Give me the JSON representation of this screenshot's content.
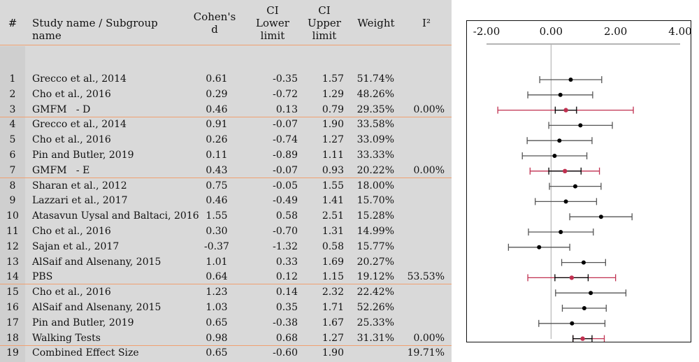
{
  "headers": {
    "num": "#",
    "name": "Study name / Subgroup name",
    "d_line1": "Cohen's",
    "d_line2": "d",
    "lower_line1": "CI",
    "lower_line2": "Lower",
    "lower_line3": "limit",
    "upper_line1": "CI",
    "upper_line2": "Upper",
    "upper_line3": "limit",
    "weight": "Weight",
    "i2": "I²"
  },
  "rows": [
    {
      "num": "1",
      "name": "Grecco et al., 2014",
      "d": "0.61",
      "lower": "-0.35",
      "upper": "1.57",
      "weight": "51.74%",
      "i2": ""
    },
    {
      "num": "2",
      "name": "Cho et al., 2016",
      "d": "0.29",
      "lower": "-0.72",
      "upper": "1.29",
      "weight": "48.26%",
      "i2": ""
    },
    {
      "num": "3",
      "name": "GMFM   - D",
      "d": "0.46",
      "lower": "0.13",
      "upper": "0.79",
      "weight": "29.35%",
      "i2": "0.00%"
    },
    {
      "num": "4",
      "name": "Grecco et al., 2014",
      "d": "0.91",
      "lower": "-0.07",
      "upper": "1.90",
      "weight": "33.58%",
      "i2": ""
    },
    {
      "num": "5",
      "name": "Cho et al., 2016",
      "d": "0.26",
      "lower": "-0.74",
      "upper": "1.27",
      "weight": "33.09%",
      "i2": ""
    },
    {
      "num": "6",
      "name": "Pin and Butler, 2019",
      "d": "0.11",
      "lower": "-0.89",
      "upper": "1.11",
      "weight": "33.33%",
      "i2": ""
    },
    {
      "num": "7",
      "name": "GMFM   - E",
      "d": "0.43",
      "lower": "-0.07",
      "upper": "0.93",
      "weight": "20.22%",
      "i2": "0.00%"
    },
    {
      "num": "8",
      "name": "Sharan et al., 2012",
      "d": "0.75",
      "lower": "-0.05",
      "upper": "1.55",
      "weight": "18.00%",
      "i2": ""
    },
    {
      "num": "9",
      "name": "Lazzari et al., 2017",
      "d": "0.46",
      "lower": "-0.49",
      "upper": "1.41",
      "weight": "15.70%",
      "i2": ""
    },
    {
      "num": "10",
      "name": "Atasavun Uysal and Baltaci, 2016",
      "d": "1.55",
      "lower": "0.58",
      "upper": "2.51",
      "weight": "15.28%",
      "i2": ""
    },
    {
      "num": "11",
      "name": "Cho et al., 2016",
      "d": "0.30",
      "lower": "-0.70",
      "upper": "1.31",
      "weight": "14.99%",
      "i2": ""
    },
    {
      "num": "12",
      "name": "Sajan et al., 2017",
      "d": "-0.37",
      "lower": "-1.32",
      "upper": "0.58",
      "weight": "15.77%",
      "i2": ""
    },
    {
      "num": "13",
      "name": "AlSaif and Alsenany, 2015",
      "d": "1.01",
      "lower": "0.33",
      "upper": "1.69",
      "weight": "20.27%",
      "i2": ""
    },
    {
      "num": "14",
      "name": "PBS",
      "d": "0.64",
      "lower": "0.12",
      "upper": "1.15",
      "weight": "19.12%",
      "i2": "53.53%"
    },
    {
      "num": "15",
      "name": "Cho et al., 2016",
      "d": "1.23",
      "lower": "0.14",
      "upper": "2.32",
      "weight": "22.42%",
      "i2": ""
    },
    {
      "num": "16",
      "name": "AlSaif and Alsenany, 2015",
      "d": "1.03",
      "lower": "0.35",
      "upper": "1.71",
      "weight": "52.26%",
      "i2": ""
    },
    {
      "num": "17",
      "name": "Pin and Butler, 2019",
      "d": "0.65",
      "lower": "-0.38",
      "upper": "1.67",
      "weight": "25.33%",
      "i2": ""
    },
    {
      "num": "18",
      "name": "Walking Tests",
      "d": "0.98",
      "lower": "0.68",
      "upper": "1.27",
      "weight": "31.31%",
      "i2": "0.00%"
    },
    {
      "num": "19",
      "name": "Combined Effect Size",
      "d": "0.65",
      "lower": "-0.60",
      "upper": "1.90",
      "weight": "",
      "i2": "19.71%"
    }
  ],
  "colors": {
    "study": "#555555",
    "subgroup": "#c03050",
    "separator": "#f0a070",
    "panel": "#d9d9d9"
  },
  "chart_data": {
    "type": "forest",
    "xlim": [
      -2.0,
      4.0
    ],
    "xticks": [
      "-2.00",
      "0.00",
      "2.00",
      "4.00"
    ],
    "reference_line": 0,
    "grid": false,
    "points": [
      {
        "row": 1,
        "kind": "study",
        "d": 0.61,
        "lower": -0.35,
        "upper": 1.57
      },
      {
        "row": 2,
        "kind": "study",
        "d": 0.29,
        "lower": -0.72,
        "upper": 1.29
      },
      {
        "row": 3,
        "kind": "subgroup",
        "d": 0.46,
        "lower": -1.65,
        "upper": 2.55,
        "pooled_lower": 0.13,
        "pooled_upper": 0.79
      },
      {
        "row": 4,
        "kind": "study",
        "d": 0.91,
        "lower": -0.07,
        "upper": 1.9
      },
      {
        "row": 5,
        "kind": "study",
        "d": 0.26,
        "lower": -0.74,
        "upper": 1.27
      },
      {
        "row": 6,
        "kind": "study",
        "d": 0.11,
        "lower": -0.89,
        "upper": 1.11
      },
      {
        "row": 7,
        "kind": "subgroup",
        "d": 0.43,
        "lower": -0.65,
        "upper": 1.5,
        "pooled_lower": -0.07,
        "pooled_upper": 0.93
      },
      {
        "row": 8,
        "kind": "study",
        "d": 0.75,
        "lower": -0.05,
        "upper": 1.55
      },
      {
        "row": 9,
        "kind": "study",
        "d": 0.46,
        "lower": -0.49,
        "upper": 1.41
      },
      {
        "row": 10,
        "kind": "study",
        "d": 1.55,
        "lower": 0.58,
        "upper": 2.51
      },
      {
        "row": 11,
        "kind": "study",
        "d": 0.3,
        "lower": -0.7,
        "upper": 1.31
      },
      {
        "row": 12,
        "kind": "study",
        "d": -0.37,
        "lower": -1.32,
        "upper": 0.58
      },
      {
        "row": 13,
        "kind": "study",
        "d": 1.01,
        "lower": 0.33,
        "upper": 1.69
      },
      {
        "row": 14,
        "kind": "subgroup",
        "d": 0.64,
        "lower": -0.72,
        "upper": 2.0,
        "pooled_lower": 0.12,
        "pooled_upper": 1.15
      },
      {
        "row": 15,
        "kind": "study",
        "d": 1.23,
        "lower": 0.14,
        "upper": 2.32
      },
      {
        "row": 16,
        "kind": "study",
        "d": 1.03,
        "lower": 0.35,
        "upper": 1.71
      },
      {
        "row": 17,
        "kind": "study",
        "d": 0.65,
        "lower": -0.38,
        "upper": 1.67
      },
      {
        "row": 18,
        "kind": "subgroup",
        "d": 0.98,
        "lower": 0.68,
        "upper": 1.65,
        "pooled_lower": 0.68,
        "pooled_upper": 1.27
      },
      {
        "row": 19,
        "kind": "overall",
        "d": 0.65,
        "lower": -0.6,
        "upper": 1.9
      }
    ]
  }
}
